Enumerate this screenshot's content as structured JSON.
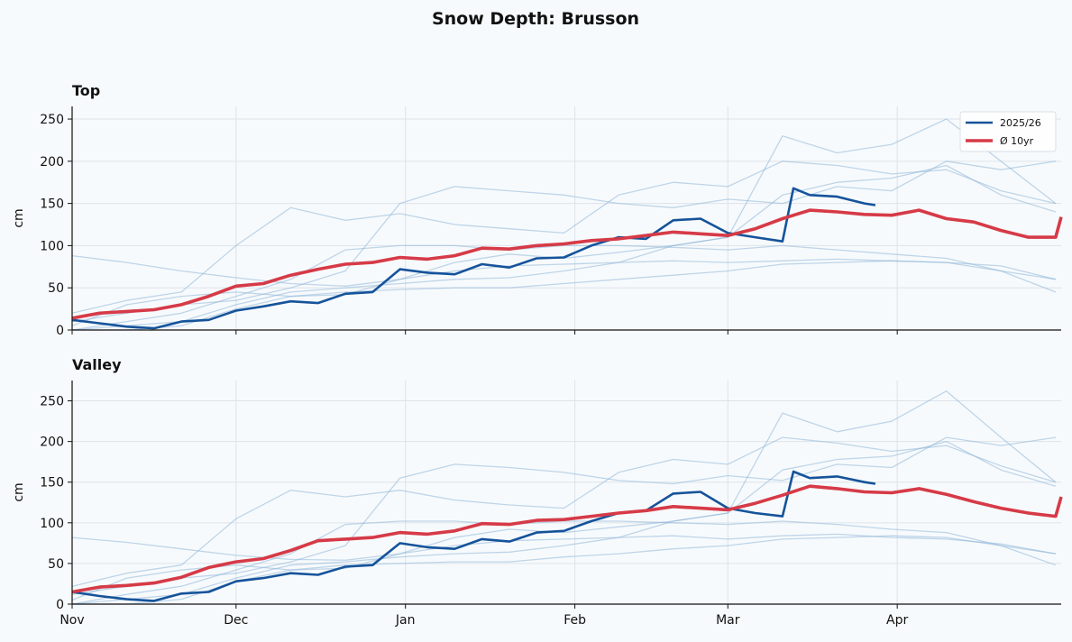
{
  "title": "Snow Depth: Brusson",
  "colors": {
    "current": "#15539a",
    "average": "#d63a47",
    "history": "#8fb6d8",
    "background": "#f7fafc"
  },
  "chart_data": [
    {
      "type": "line",
      "title": "Top",
      "ylabel": "cm",
      "ylim": [
        0,
        265
      ],
      "yticks": [
        0,
        50,
        100,
        150,
        200,
        250
      ],
      "xlim": [
        "2025-11-01",
        "2026-04-30"
      ],
      "xticks": [
        {
          "label": "Nov",
          "date": "2025-11-01"
        },
        {
          "label": "Dec",
          "date": "2025-12-01"
        },
        {
          "label": "Jan",
          "date": "2026-01-01"
        },
        {
          "label": "Feb",
          "date": "2026-02-01"
        },
        {
          "label": "Mar",
          "date": "2026-03-01"
        },
        {
          "label": "Apr",
          "date": "2026-04-01"
        }
      ],
      "grid": true,
      "legend": "top-right",
      "series": [
        {
          "name": "2025/26",
          "role": "current",
          "days_since_nov1": [
            0,
            5,
            10,
            15,
            20,
            25,
            30,
            35,
            40,
            45,
            50,
            55,
            60,
            65,
            70,
            75,
            80,
            85,
            90,
            95,
            100,
            105,
            110,
            115,
            120,
            125,
            130,
            132,
            135,
            140,
            145,
            147
          ],
          "values": [
            12,
            8,
            4,
            2,
            10,
            12,
            23,
            28,
            34,
            32,
            43,
            45,
            72,
            68,
            66,
            78,
            74,
            85,
            86,
            100,
            110,
            108,
            130,
            132,
            115,
            110,
            105,
            168,
            160,
            158,
            150,
            148
          ]
        },
        {
          "name": "Ø 10yr",
          "role": "average",
          "days_since_nov1": [
            0,
            5,
            10,
            15,
            20,
            25,
            30,
            35,
            40,
            45,
            50,
            55,
            60,
            65,
            70,
            75,
            80,
            85,
            90,
            95,
            100,
            105,
            110,
            115,
            120,
            125,
            130,
            135,
            140,
            145,
            150,
            155,
            160,
            165,
            170,
            175,
            180,
            181
          ],
          "values": [
            14,
            20,
            22,
            24,
            30,
            40,
            52,
            55,
            65,
            72,
            78,
            80,
            86,
            84,
            88,
            97,
            96,
            100,
            102,
            106,
            108,
            112,
            116,
            114,
            112,
            120,
            132,
            142,
            140,
            137,
            136,
            142,
            132,
            128,
            118,
            110,
            110,
            134
          ]
        },
        {
          "role": "history",
          "values": [
            88,
            80,
            70,
            62,
            55,
            52,
            60,
            70,
            76,
            78,
            80,
            82,
            80,
            82,
            84,
            82,
            80,
            76,
            60
          ]
        },
        {
          "role": "history",
          "values": [
            20,
            35,
            45,
            100,
            145,
            130,
            138,
            125,
            120,
            115,
            160,
            175,
            170,
            200,
            195,
            185,
            190,
            165,
            150
          ]
        },
        {
          "role": "history",
          "values": [
            5,
            30,
            40,
            45,
            40,
            42,
            60,
            80,
            90,
            85,
            92,
            100,
            110,
            230,
            210,
            220,
            250,
            200,
            150
          ]
        },
        {
          "role": "history",
          "values": [
            0,
            10,
            20,
            40,
            60,
            95,
            100,
            100,
            95,
            100,
            100,
            98,
            95,
            100,
            95,
            90,
            85,
            70,
            60
          ]
        },
        {
          "role": "history",
          "values": [
            0,
            5,
            10,
            30,
            45,
            50,
            55,
            60,
            62,
            70,
            80,
            100,
            110,
            160,
            175,
            180,
            195,
            160,
            140
          ]
        },
        {
          "role": "history",
          "values": [
            0,
            0,
            5,
            25,
            40,
            45,
            48,
            50,
            50,
            55,
            60,
            65,
            70,
            78,
            80,
            82,
            80,
            70,
            45
          ]
        },
        {
          "role": "history",
          "values": [
            10,
            20,
            30,
            35,
            50,
            70,
            150,
            170,
            165,
            160,
            150,
            145,
            155,
            150,
            170,
            165,
            200,
            190,
            200
          ]
        }
      ]
    },
    {
      "type": "line",
      "title": "Valley",
      "ylabel": "cm",
      "ylim": [
        0,
        275
      ],
      "yticks": [
        0,
        50,
        100,
        150,
        200,
        250
      ],
      "xlim": [
        "2025-11-01",
        "2026-04-30"
      ],
      "xticks": [
        {
          "label": "Nov",
          "date": "2025-11-01"
        },
        {
          "label": "Dec",
          "date": "2025-12-01"
        },
        {
          "label": "Jan",
          "date": "2026-01-01"
        },
        {
          "label": "Feb",
          "date": "2026-02-01"
        },
        {
          "label": "Mar",
          "date": "2026-03-01"
        },
        {
          "label": "Apr",
          "date": "2026-04-01"
        }
      ],
      "grid": true,
      "series": [
        {
          "name": "2025/26",
          "role": "current",
          "days_since_nov1": [
            0,
            5,
            10,
            15,
            20,
            25,
            30,
            35,
            40,
            45,
            50,
            55,
            60,
            65,
            70,
            75,
            80,
            85,
            90,
            95,
            100,
            105,
            110,
            115,
            120,
            125,
            130,
            132,
            135,
            140,
            145,
            147
          ],
          "values": [
            15,
            10,
            6,
            4,
            13,
            15,
            28,
            32,
            38,
            36,
            46,
            48,
            75,
            70,
            68,
            80,
            77,
            88,
            90,
            102,
            112,
            115,
            136,
            138,
            118,
            112,
            108,
            163,
            155,
            157,
            150,
            148
          ]
        },
        {
          "name": "Ø 10yr",
          "role": "average",
          "days_since_nov1": [
            0,
            5,
            10,
            15,
            20,
            25,
            30,
            35,
            40,
            45,
            50,
            55,
            60,
            65,
            70,
            75,
            80,
            85,
            90,
            95,
            100,
            105,
            110,
            115,
            120,
            125,
            130,
            135,
            140,
            145,
            150,
            155,
            160,
            165,
            170,
            175,
            180,
            181
          ],
          "values": [
            15,
            21,
            23,
            26,
            33,
            45,
            52,
            56,
            66,
            78,
            80,
            82,
            88,
            86,
            90,
            99,
            98,
            103,
            104,
            108,
            112,
            115,
            120,
            118,
            116,
            124,
            134,
            145,
            142,
            138,
            137,
            142,
            135,
            126,
            118,
            112,
            108,
            132
          ]
        },
        {
          "role": "history",
          "values": [
            82,
            76,
            68,
            60,
            55,
            54,
            62,
            72,
            78,
            80,
            82,
            84,
            80,
            84,
            86,
            82,
            80,
            74,
            62
          ]
        },
        {
          "role": "history",
          "values": [
            22,
            38,
            48,
            105,
            140,
            132,
            140,
            128,
            122,
            118,
            162,
            178,
            172,
            205,
            198,
            188,
            195,
            170,
            150
          ]
        },
        {
          "role": "history",
          "values": [
            5,
            32,
            42,
            48,
            42,
            44,
            62,
            82,
            92,
            88,
            95,
            102,
            112,
            235,
            212,
            225,
            262,
            205,
            150
          ]
        },
        {
          "role": "history",
          "values": [
            0,
            12,
            22,
            42,
            62,
            98,
            102,
            102,
            98,
            102,
            102,
            100,
            98,
            102,
            98,
            92,
            88,
            72,
            62
          ]
        },
        {
          "role": "history",
          "values": [
            0,
            6,
            12,
            32,
            48,
            52,
            58,
            62,
            64,
            72,
            82,
            102,
            112,
            165,
            178,
            182,
            200,
            165,
            145
          ]
        },
        {
          "role": "history",
          "values": [
            0,
            0,
            6,
            28,
            42,
            48,
            50,
            52,
            52,
            58,
            62,
            68,
            72,
            80,
            82,
            84,
            82,
            72,
            48
          ]
        },
        {
          "role": "history",
          "values": [
            12,
            22,
            32,
            38,
            52,
            72,
            155,
            172,
            168,
            162,
            152,
            148,
            158,
            152,
            172,
            168,
            205,
            195,
            205
          ]
        }
      ]
    }
  ]
}
